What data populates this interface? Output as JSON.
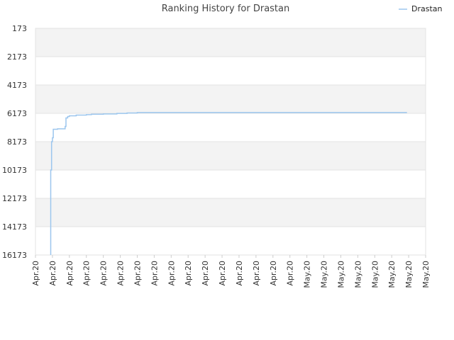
{
  "chart_data": {
    "type": "line",
    "title": "Ranking History for Drastan",
    "xlabel": "",
    "ylabel": "",
    "y_reversed": true,
    "ylim": [
      173,
      16173
    ],
    "y_ticks": [
      "173",
      "2173",
      "4173",
      "6173",
      "8173",
      "10173",
      "12173",
      "14173",
      "16173"
    ],
    "x_ticks": [
      "Apr.20",
      "Apr.20",
      "Apr.20",
      "Apr.20",
      "Apr.20",
      "Apr.20",
      "Apr.20",
      "Apr.20",
      "Apr.20",
      "Apr.20",
      "Apr.20",
      "Apr.20",
      "Apr.20",
      "Apr.20",
      "Apr.20",
      "Apr.20",
      "May.20",
      "May.20",
      "May.20",
      "May.20",
      "May.20",
      "May.20",
      "May.20",
      "May.20"
    ],
    "grid": true,
    "band_stripes": true,
    "legend_position": "top-right",
    "series": [
      {
        "name": "Drastan",
        "color": "#9cc6ee",
        "points": [
          {
            "x": 0.9,
            "y": 16173
          },
          {
            "x": 0.9,
            "y": 10173
          },
          {
            "x": 0.95,
            "y": 10000
          },
          {
            "x": 0.95,
            "y": 8173
          },
          {
            "x": 1.0,
            "y": 7900
          },
          {
            "x": 1.05,
            "y": 7300
          },
          {
            "x": 1.3,
            "y": 7270
          },
          {
            "x": 1.75,
            "y": 7250
          },
          {
            "x": 1.75,
            "y": 7100
          },
          {
            "x": 1.8,
            "y": 6500
          },
          {
            "x": 1.9,
            "y": 6400
          },
          {
            "x": 2.0,
            "y": 6350
          },
          {
            "x": 2.4,
            "y": 6300
          },
          {
            "x": 3.0,
            "y": 6270
          },
          {
            "x": 3.3,
            "y": 6240
          },
          {
            "x": 4.0,
            "y": 6220
          },
          {
            "x": 4.8,
            "y": 6180
          },
          {
            "x": 5.4,
            "y": 6150
          },
          {
            "x": 6.0,
            "y": 6120
          },
          {
            "x": 10.0,
            "y": 6120
          },
          {
            "x": 15.0,
            "y": 6120
          },
          {
            "x": 21.9,
            "y": 6120
          }
        ]
      }
    ]
  }
}
